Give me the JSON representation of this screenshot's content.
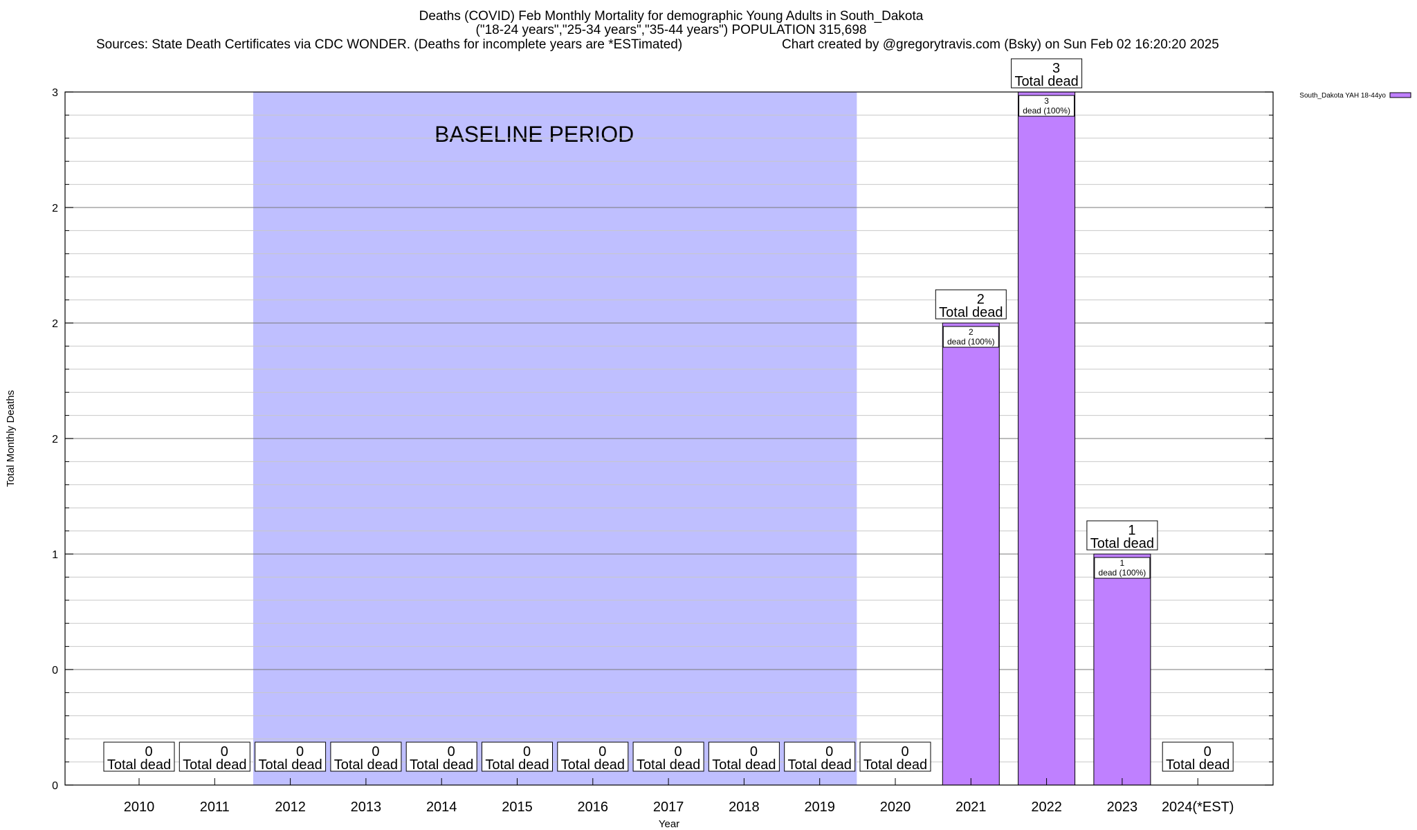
{
  "header": {
    "title": "Deaths (COVID) Feb Monthly Mortality for demographic Young Adults in South_Dakota",
    "subtitle": "(\"18-24 years\",\"25-34 years\",\"35-44 years\") POPULATION 315,698",
    "sources": "Sources: State Death Certificates via CDC WONDER. (Deaths for incomplete years are *ESTimated)",
    "credit": "Chart created by @gregorytravis.com (Bsky) on Sun Feb 02 16:20:20 2025"
  },
  "colors": {
    "bar": "#bf80ff",
    "baseline_band": "#bfbfff",
    "grid": "#c8c8c8"
  },
  "chart_data": {
    "type": "bar",
    "title": "Deaths (COVID) Feb Monthly Mortality for demographic Young Adults in South_Dakota",
    "xlabel": "Year",
    "ylabel": "Total Monthly Deaths",
    "ylim": [
      0,
      3
    ],
    "y_tick_labels": [
      "0",
      "0",
      "1",
      "2",
      "2",
      "2",
      "3"
    ],
    "grid": true,
    "legend_position": "top-right",
    "categories": [
      "2010",
      "2011",
      "2012",
      "2013",
      "2014",
      "2015",
      "2016",
      "2017",
      "2018",
      "2019",
      "2020",
      "2021",
      "2022",
      "2023",
      "2024(*EST)"
    ],
    "series": [
      {
        "name": "South_Dakota YAH 18-44yo",
        "values": [
          0,
          0,
          0,
          0,
          0,
          0,
          0,
          0,
          0,
          0,
          0,
          2,
          3,
          1,
          0
        ]
      }
    ],
    "total_label_text": "Total dead",
    "inner_label_suffix": "dead (100%)",
    "baseline_band": {
      "label": "BASELINE PERIOD",
      "from": "2012",
      "to": "2019"
    }
  }
}
